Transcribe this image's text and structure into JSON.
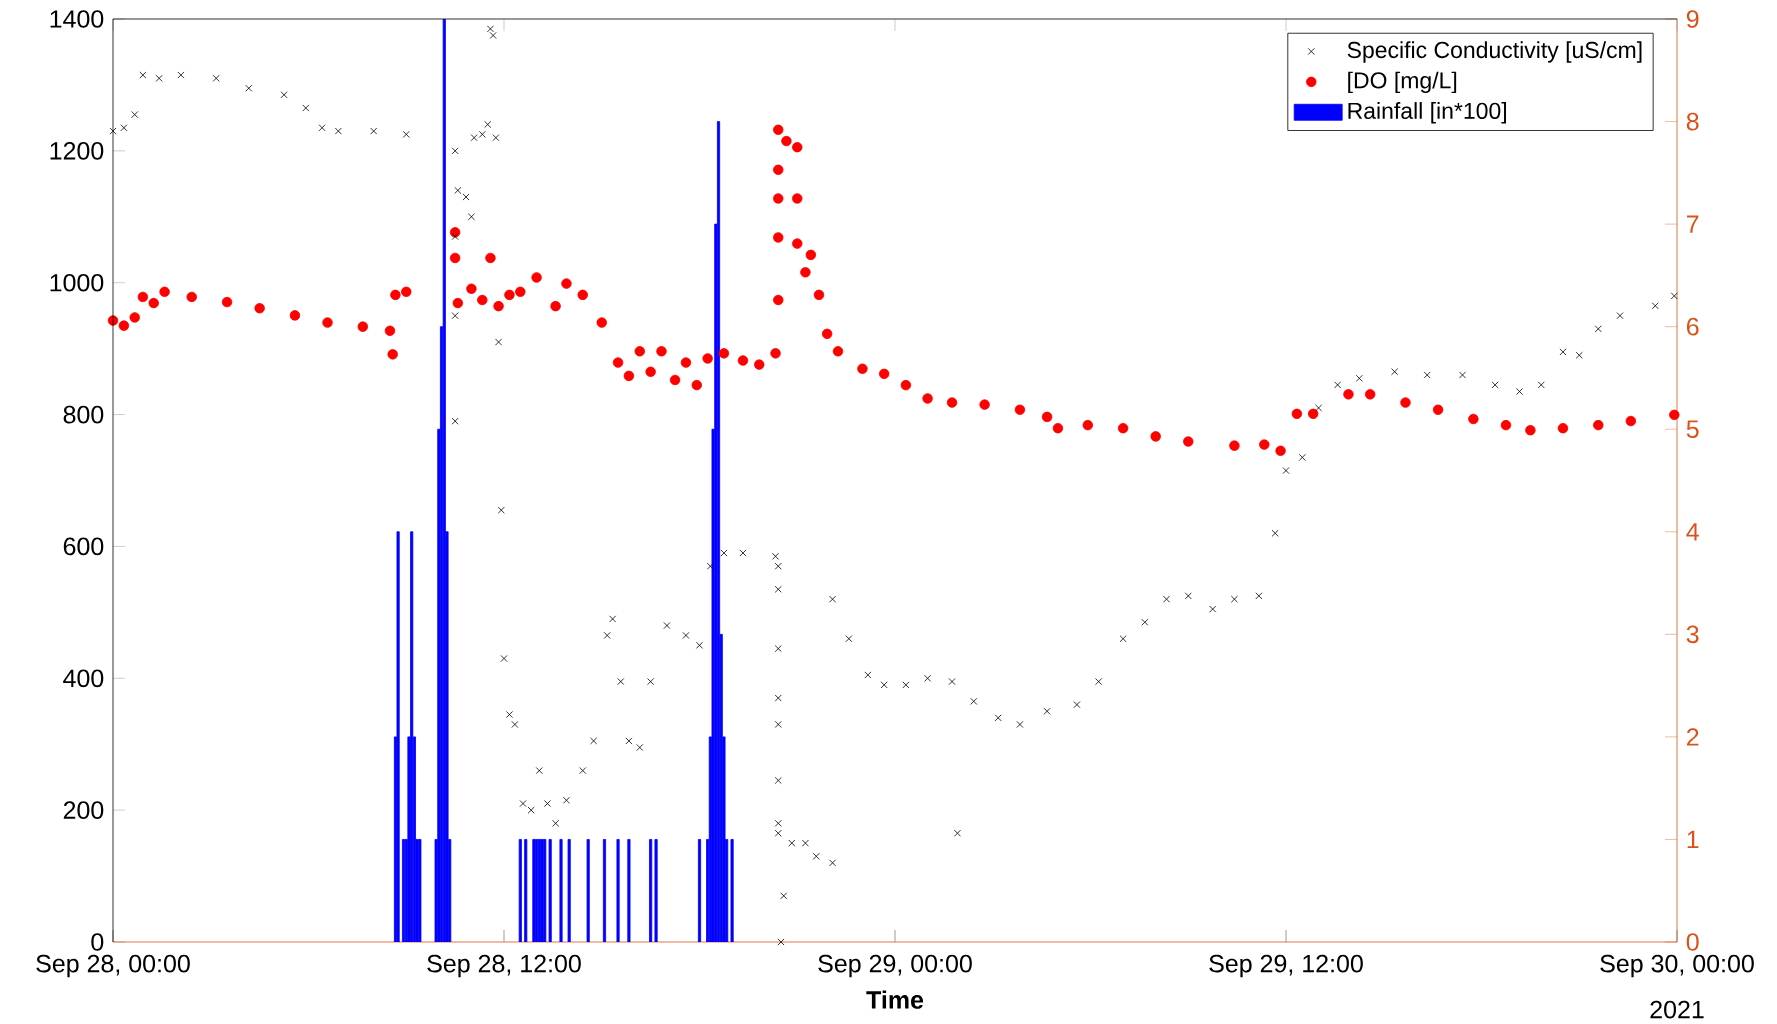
{
  "chart_data": {
    "type": "scatter",
    "xlabel": "Time",
    "annotations": [
      "2021"
    ],
    "legend": "top right",
    "xlim": [
      "2021-09-28T00:00",
      "2021-09-30T00:00"
    ],
    "xticks": [
      {
        "value": "2021-09-28T00:00",
        "label": "Sep 28, 00:00"
      },
      {
        "value": "2021-09-28T12:00",
        "label": "Sep 28, 12:00"
      },
      {
        "value": "2021-09-29T00:00",
        "label": "Sep 29, 00:00"
      },
      {
        "value": "2021-09-29T12:00",
        "label": "Sep 29, 12:00"
      },
      {
        "value": "2021-09-30T00:00",
        "label": "Sep 30, 00:00"
      }
    ],
    "ylim": [
      0,
      1400
    ],
    "yticks": [
      0,
      200,
      400,
      600,
      800,
      1000,
      1200,
      1400
    ],
    "y2lim": [
      0,
      9
    ],
    "y2ticks": [
      0,
      1,
      2,
      3,
      4,
      5,
      6,
      7,
      8,
      9
    ],
    "series": [
      {
        "name": "Specific Conductivity [uS/cm]",
        "marker": "cross",
        "color": "#000000",
        "axis": "y",
        "x": [
          "2021-09-28T00:00",
          "2021-09-28T00:20",
          "2021-09-28T00:40",
          "2021-09-28T00:55",
          "2021-09-28T01:25",
          "2021-09-28T02:05",
          "2021-09-28T03:10",
          "2021-09-28T04:10",
          "2021-09-28T05:15",
          "2021-09-28T05:55",
          "2021-09-28T06:25",
          "2021-09-28T06:55",
          "2021-09-28T08:00",
          "2021-09-28T09:00",
          "2021-09-28T10:30",
          "2021-09-28T10:30",
          "2021-09-28T10:30",
          "2021-09-28T10:30",
          "2021-09-28T10:35",
          "2021-09-28T10:50",
          "2021-09-28T11:00",
          "2021-09-28T11:05",
          "2021-09-28T11:20",
          "2021-09-28T11:30",
          "2021-09-28T11:35",
          "2021-09-28T11:40",
          "2021-09-28T11:45",
          "2021-09-28T11:50",
          "2021-09-28T11:55",
          "2021-09-28T12:00",
          "2021-09-28T12:10",
          "2021-09-28T12:20",
          "2021-09-28T12:35",
          "2021-09-28T12:50",
          "2021-09-28T13:05",
          "2021-09-28T13:20",
          "2021-09-28T13:35",
          "2021-09-28T13:55",
          "2021-09-28T14:25",
          "2021-09-28T14:45",
          "2021-09-28T15:10",
          "2021-09-28T15:20",
          "2021-09-28T15:35",
          "2021-09-28T15:50",
          "2021-09-28T16:10",
          "2021-09-28T16:30",
          "2021-09-28T17:00",
          "2021-09-28T17:35",
          "2021-09-28T18:00",
          "2021-09-28T18:20",
          "2021-09-28T18:45",
          "2021-09-28T19:20",
          "2021-09-28T20:20",
          "2021-09-28T20:25",
          "2021-09-28T20:25",
          "2021-09-28T20:25",
          "2021-09-28T20:25",
          "2021-09-28T20:25",
          "2021-09-28T20:25",
          "2021-09-28T20:25",
          "2021-09-28T20:25",
          "2021-09-28T20:30",
          "2021-09-28T20:35",
          "2021-09-28T20:50",
          "2021-09-28T21:15",
          "2021-09-28T21:35",
          "2021-09-28T22:05",
          "2021-09-28T22:05",
          "2021-09-28T22:35",
          "2021-09-28T23:10",
          "2021-09-28T23:40",
          "2021-09-29T00:20",
          "2021-09-29T01:00",
          "2021-09-29T01:45",
          "2021-09-29T01:55",
          "2021-09-29T02:25",
          "2021-09-29T03:10",
          "2021-09-29T03:50",
          "2021-09-29T04:40",
          "2021-09-29T05:35",
          "2021-09-29T06:15",
          "2021-09-29T07:00",
          "2021-09-29T07:40",
          "2021-09-29T08:20",
          "2021-09-29T09:00",
          "2021-09-29T09:45",
          "2021-09-29T10:25",
          "2021-09-29T11:10",
          "2021-09-29T11:40",
          "2021-09-29T12:00",
          "2021-09-29T12:30",
          "2021-09-29T13:00",
          "2021-09-29T13:35",
          "2021-09-29T14:15",
          "2021-09-29T15:20",
          "2021-09-29T16:20",
          "2021-09-29T17:25",
          "2021-09-29T18:25",
          "2021-09-29T19:10",
          "2021-09-29T19:50",
          "2021-09-29T20:30",
          "2021-09-29T21:00",
          "2021-09-29T21:35",
          "2021-09-29T22:15",
          "2021-09-29T23:20",
          "2021-09-29T23:55"
        ],
        "values": [
          1230,
          1235,
          1255,
          1315,
          1310,
          1315,
          1310,
          1295,
          1285,
          1265,
          1235,
          1230,
          1230,
          1225,
          1200,
          1070,
          950,
          790,
          1140,
          1130,
          1100,
          1220,
          1225,
          1240,
          1385,
          1375,
          1220,
          910,
          655,
          430,
          345,
          330,
          210,
          200,
          260,
          210,
          180,
          215,
          260,
          305,
          465,
          490,
          395,
          305,
          295,
          395,
          480,
          465,
          450,
          570,
          590,
          590,
          585,
          570,
          535,
          445,
          370,
          330,
          245,
          180,
          165,
          0,
          70,
          150,
          150,
          130,
          120,
          520,
          460,
          405,
          390,
          390,
          400,
          395,
          165,
          365,
          340,
          330,
          350,
          360,
          395,
          460,
          485,
          520,
          525,
          505,
          520,
          525,
          620,
          715,
          735,
          810,
          845,
          855,
          865,
          860,
          860,
          845,
          835,
          845,
          895,
          890,
          930,
          950,
          965,
          980
        ]
      },
      {
        "name": "[DO [mg/L]",
        "marker": "circle",
        "color": "#ff0000",
        "axis": "y2",
        "x": [
          "2021-09-28T00:00",
          "2021-09-28T00:20",
          "2021-09-28T00:40",
          "2021-09-28T00:55",
          "2021-09-28T01:15",
          "2021-09-28T01:35",
          "2021-09-28T02:25",
          "2021-09-28T03:30",
          "2021-09-28T04:30",
          "2021-09-28T05:35",
          "2021-09-28T06:35",
          "2021-09-28T07:40",
          "2021-09-28T08:30",
          "2021-09-28T08:35",
          "2021-09-28T08:40",
          "2021-09-28T09:00",
          "2021-09-28T10:30",
          "2021-09-28T10:30",
          "2021-09-28T10:35",
          "2021-09-28T11:00",
          "2021-09-28T11:20",
          "2021-09-28T11:35",
          "2021-09-28T11:50",
          "2021-09-28T12:10",
          "2021-09-28T12:30",
          "2021-09-28T13:00",
          "2021-09-28T13:35",
          "2021-09-28T13:55",
          "2021-09-28T14:25",
          "2021-09-28T15:00",
          "2021-09-28T15:30",
          "2021-09-28T15:50",
          "2021-09-28T16:10",
          "2021-09-28T16:30",
          "2021-09-28T16:50",
          "2021-09-28T17:15",
          "2021-09-28T17:35",
          "2021-09-28T17:55",
          "2021-09-28T18:15",
          "2021-09-28T18:45",
          "2021-09-28T19:20",
          "2021-09-28T19:50",
          "2021-09-28T20:20",
          "2021-09-28T20:25",
          "2021-09-28T20:25",
          "2021-09-28T20:25",
          "2021-09-28T20:25",
          "2021-09-28T20:25",
          "2021-09-28T20:40",
          "2021-09-28T21:00",
          "2021-09-28T21:00",
          "2021-09-28T21:00",
          "2021-09-28T21:15",
          "2021-09-28T21:25",
          "2021-09-28T21:40",
          "2021-09-28T21:55",
          "2021-09-28T22:15",
          "2021-09-28T23:00",
          "2021-09-28T23:40",
          "2021-09-29T00:20",
          "2021-09-29T01:00",
          "2021-09-29T01:45",
          "2021-09-29T02:45",
          "2021-09-29T03:50",
          "2021-09-29T04:40",
          "2021-09-29T05:00",
          "2021-09-29T05:55",
          "2021-09-29T07:00",
          "2021-09-29T08:00",
          "2021-09-29T09:00",
          "2021-09-29T10:25",
          "2021-09-29T11:20",
          "2021-09-29T11:50",
          "2021-09-29T12:20",
          "2021-09-29T12:50",
          "2021-09-29T13:55",
          "2021-09-29T14:35",
          "2021-09-29T15:40",
          "2021-09-29T16:40",
          "2021-09-29T17:45",
          "2021-09-29T18:45",
          "2021-09-29T19:30",
          "2021-09-29T20:30",
          "2021-09-29T21:35",
          "2021-09-29T22:35",
          "2021-09-29T23:55"
        ],
        "values": [
          6.06,
          6.01,
          6.09,
          6.29,
          6.23,
          6.34,
          6.29,
          6.24,
          6.18,
          6.11,
          6.04,
          6.0,
          5.96,
          5.73,
          6.31,
          6.34,
          6.92,
          6.67,
          6.23,
          6.37,
          6.26,
          6.67,
          6.2,
          6.31,
          6.34,
          6.48,
          6.2,
          6.42,
          6.31,
          6.04,
          5.65,
          5.52,
          5.76,
          5.56,
          5.76,
          5.48,
          5.65,
          5.43,
          5.69,
          5.74,
          5.67,
          5.63,
          5.74,
          6.26,
          6.87,
          7.25,
          7.53,
          7.92,
          7.81,
          7.75,
          7.25,
          6.81,
          6.53,
          6.7,
          6.31,
          5.93,
          5.76,
          5.59,
          5.54,
          5.43,
          5.3,
          5.26,
          5.24,
          5.19,
          5.12,
          5.01,
          5.04,
          5.01,
          4.93,
          4.88,
          4.84,
          4.85,
          4.79,
          5.15,
          5.15,
          5.34,
          5.34,
          5.26,
          5.19,
          5.1,
          5.04,
          4.99,
          5.01,
          5.04,
          5.08,
          5.14
        ]
      },
      {
        "name": "Rainfall [in*100]",
        "type": "bar",
        "color": "#0000ff",
        "axis": "y2",
        "x": [
          "2021-09-28T08:40",
          "2021-09-28T08:45",
          "2021-09-28T08:55",
          "2021-09-28T09:00",
          "2021-09-28T09:05",
          "2021-09-28T09:10",
          "2021-09-28T09:15",
          "2021-09-28T09:20",
          "2021-09-28T09:25",
          "2021-09-28T09:55",
          "2021-09-28T10:00",
          "2021-09-28T10:05",
          "2021-09-28T10:10",
          "2021-09-28T10:15",
          "2021-09-28T10:20",
          "2021-09-28T12:30",
          "2021-09-28T12:40",
          "2021-09-28T12:55",
          "2021-09-28T13:00",
          "2021-09-28T13:05",
          "2021-09-28T13:10",
          "2021-09-28T13:15",
          "2021-09-28T13:25",
          "2021-09-28T13:45",
          "2021-09-28T14:00",
          "2021-09-28T14:35",
          "2021-09-28T15:05",
          "2021-09-28T15:30",
          "2021-09-28T15:50",
          "2021-09-28T16:30",
          "2021-09-28T16:40",
          "2021-09-28T18:00",
          "2021-09-28T18:15",
          "2021-09-28T18:20",
          "2021-09-28T18:25",
          "2021-09-28T18:30",
          "2021-09-28T18:35",
          "2021-09-28T18:40",
          "2021-09-28T18:45",
          "2021-09-28T18:50",
          "2021-09-28T19:00"
        ],
        "values": [
          2,
          4,
          1,
          1,
          2,
          4,
          2,
          1,
          1,
          1,
          5,
          6,
          9,
          4,
          1,
          1,
          1,
          1,
          1,
          1,
          1,
          1,
          1,
          1,
          1,
          1,
          1,
          1,
          1,
          1,
          1,
          1,
          1,
          2,
          5,
          7,
          8,
          3,
          2,
          1,
          1
        ]
      }
    ]
  }
}
